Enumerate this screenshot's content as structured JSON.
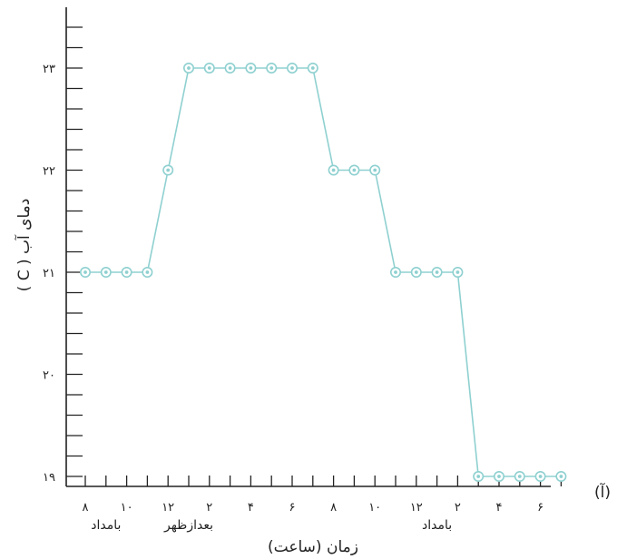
{
  "chart_data": {
    "type": "line",
    "panel_label": "(آ)",
    "xlabel": "زمان (ساعت)",
    "ylabel": "دمای آب ( C )",
    "ylim": [
      18.9,
      24.2
    ],
    "y_ticks": [
      {
        "value": 19,
        "label": "۱۹"
      },
      {
        "value": 20,
        "label": "۲۰"
      },
      {
        "value": 21,
        "label": "۲۱"
      },
      {
        "value": 22,
        "label": "۲۲"
      },
      {
        "value": 23,
        "label": "۲۳"
      }
    ],
    "y_minor_step": 0.2,
    "x_ticks": [
      {
        "value": 8,
        "label": "۸"
      },
      {
        "value": 10,
        "label": "۱۰"
      },
      {
        "value": 12,
        "label": "۱۲"
      },
      {
        "value": 14,
        "label": "۲"
      },
      {
        "value": 16,
        "label": "۴"
      },
      {
        "value": 18,
        "label": "۶"
      },
      {
        "value": 20,
        "label": "۸"
      },
      {
        "value": 22,
        "label": "۱۰"
      },
      {
        "value": 24,
        "label": "۱۲"
      },
      {
        "value": 26,
        "label": "۲"
      },
      {
        "value": 28,
        "label": "۴"
      },
      {
        "value": 30,
        "label": "۶"
      }
    ],
    "xlim": [
      7,
      31.5
    ],
    "x_period_labels": [
      {
        "x": 9,
        "label": "بامداد"
      },
      {
        "x": 13,
        "label": "بعدازظهر"
      },
      {
        "x": 25,
        "label": "بامداد"
      }
    ],
    "series": [
      {
        "x": [
          8,
          9,
          10,
          11,
          12,
          13,
          14,
          15,
          16,
          17,
          18,
          19,
          20,
          21,
          22,
          23,
          24,
          25,
          26,
          27,
          28,
          29,
          30,
          31
        ],
        "y": [
          21,
          21,
          21,
          21,
          22,
          23,
          23,
          23,
          23,
          23,
          23,
          23,
          22,
          22,
          22,
          21,
          21,
          21,
          21,
          19,
          19,
          19,
          19,
          19
        ]
      }
    ],
    "colors": {
      "series": "#8fd0d0",
      "axis": "#222222"
    }
  }
}
